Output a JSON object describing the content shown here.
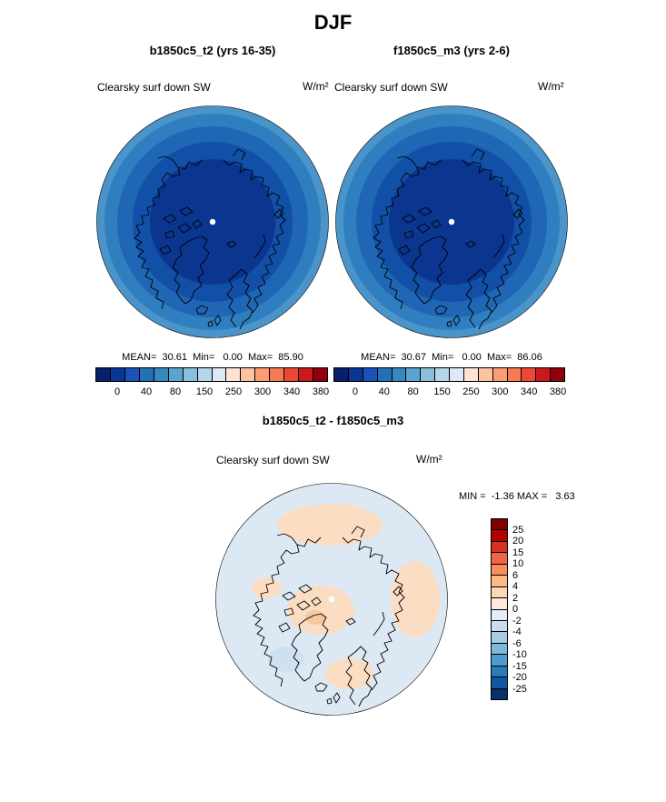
{
  "title": "DJF",
  "panels": [
    {
      "header": "b1850c5_t2 (yrs 16-35)",
      "var_label": "Clearsky surf down SW",
      "units": "W/m²",
      "stats": "MEAN=  30.61  Min=   0.00  Max=  85.90"
    },
    {
      "header": "f1850c5_m3 (yrs 2-6)",
      "var_label": "Clearsky surf down SW",
      "units": "W/m²",
      "stats": "MEAN=  30.67  Min=   0.00  Max=  86.06"
    }
  ],
  "diff": {
    "header": "b1850c5_t2 - f1850c5_m3",
    "var_label": "Clearsky surf down SW",
    "units": "W/m²",
    "minmax": "MIN =  -1.36 MAX =   3.63"
  },
  "chart_data": {
    "type": "heatmap",
    "subtype": "north-polar-stereographic-contour-maps",
    "season": "DJF",
    "variable": "Clearsky surf down SW",
    "units": "W/m²",
    "maps": [
      {
        "name": "b1850c5_t2 (yrs 16-35)",
        "mean": 30.61,
        "min": 0.0,
        "max": 85.9
      },
      {
        "name": "f1850c5_m3 (yrs 2-6)",
        "mean": 30.67,
        "min": 0.0,
        "max": 86.06
      },
      {
        "name": "b1850c5_t2 - f1850c5_m3",
        "min": -1.36,
        "max": 3.63
      }
    ],
    "colorbars": {
      "main": {
        "orientation": "horizontal",
        "ticks": [
          "0",
          "40",
          "80",
          "150",
          "250",
          "300",
          "340",
          "380"
        ],
        "colors": [
          "#081f6b",
          "#0b3694",
          "#1b51bb",
          "#2171b5",
          "#3787c0",
          "#5ba3d0",
          "#89bfdd",
          "#b4d5ea",
          "#dde9f4",
          "#fde3d3",
          "#fcc3a1",
          "#fc9c72",
          "#f87a52",
          "#ee4733",
          "#cb181d",
          "#90000d"
        ]
      },
      "diff": {
        "orientation": "vertical",
        "ticks": [
          "25",
          "20",
          "15",
          "10",
          "6",
          "4",
          "2",
          "0",
          "-2",
          "-4",
          "-6",
          "-10",
          "-15",
          "-20",
          "-25"
        ],
        "colors": [
          "#7f0000",
          "#b30000",
          "#d7301f",
          "#ef6548",
          "#fc8d59",
          "#fdbb84",
          "#fdd8b3",
          "#fee9da",
          "#e2edf6",
          "#c9dcee",
          "#a6cbe3",
          "#7db8da",
          "#4f9bcd",
          "#2b7bba",
          "#1257a4",
          "#08306b"
        ]
      }
    },
    "map_rings": [
      "#4a94c9",
      "#2f7fc0",
      "#1f66b4",
      "#1250a8",
      "#0a3690"
    ],
    "diff_map": {
      "base": "#dce9f5",
      "warm_patch": "#fbddc3",
      "warm_spot": "#f7c89d",
      "cool_patch": "#cfe1f1"
    }
  }
}
